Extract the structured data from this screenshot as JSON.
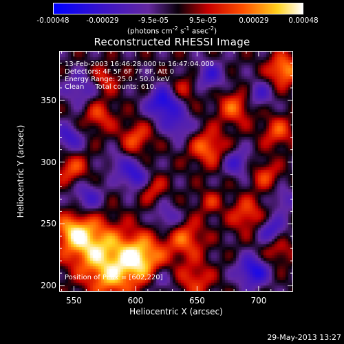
{
  "chart_data": {
    "type": "heatmap",
    "title": "Reconstructed RHESSI Image",
    "xlabel": "Heliocentric X (arcsec)",
    "ylabel": "Heliocentric Y (arcsec)",
    "xlim": [
      538,
      728
    ],
    "ylim": [
      195,
      390
    ],
    "xticks": [
      550,
      600,
      650,
      700
    ],
    "yticks": [
      200,
      250,
      300,
      350
    ],
    "colorbar": {
      "ticks": [
        "-0.00048",
        "-0.00029",
        "-9.5e-05",
        "9.5e-05",
        "0.00029",
        "0.00048"
      ],
      "tick_values": [
        -0.00048,
        -0.00029,
        -9.5e-05,
        9.5e-05,
        0.00029,
        0.00048
      ],
      "range": [
        -0.00048,
        0.00048
      ],
      "unit_prefix": "(photons cm",
      "unit_exp1": "-2",
      "unit_mid": " s",
      "unit_exp2": "-1",
      "unit_mid2": " asec",
      "unit_exp3": "-2",
      "unit_suffix": ")"
    },
    "annotations": [
      "13-Feb-2003 16:46:28.000 to 16:47:04.000",
      "Detectors: 4F 5F 6F 7F 8F, Att 0",
      "Energy Range: 25.0 - 50.0 keV",
      "Clean     Total counts: 610."
    ],
    "peak_label": "Position of Peak = [602,220]",
    "peak": [
      602,
      220
    ],
    "blobs": [
      {
        "x": 602,
        "y": 222,
        "v": 1.0,
        "s": 14
      },
      {
        "x": 565,
        "y": 232,
        "v": 0.85,
        "s": 16
      },
      {
        "x": 548,
        "y": 245,
        "v": 0.6,
        "s": 10
      },
      {
        "x": 640,
        "y": 238,
        "v": 0.55,
        "s": 11
      },
      {
        "x": 578,
        "y": 205,
        "v": 0.55,
        "s": 12
      },
      {
        "x": 720,
        "y": 375,
        "v": 0.75,
        "s": 9
      },
      {
        "x": 680,
        "y": 345,
        "v": 0.55,
        "s": 10
      },
      {
        "x": 658,
        "y": 312,
        "v": 0.6,
        "s": 10
      },
      {
        "x": 600,
        "y": 320,
        "v": 0.5,
        "s": 9
      },
      {
        "x": 570,
        "y": 338,
        "v": 0.45,
        "s": 9
      },
      {
        "x": 715,
        "y": 325,
        "v": 0.5,
        "s": 9
      },
      {
        "x": 705,
        "y": 290,
        "v": 0.45,
        "s": 8
      },
      {
        "x": 612,
        "y": 280,
        "v": 0.45,
        "s": 8
      },
      {
        "x": 548,
        "y": 295,
        "v": 0.5,
        "s": 9
      },
      {
        "x": 690,
        "y": 258,
        "v": 0.5,
        "s": 10
      },
      {
        "x": 648,
        "y": 205,
        "v": 0.45,
        "s": 10
      },
      {
        "x": 715,
        "y": 230,
        "v": 0.4,
        "s": 9
      },
      {
        "x": 575,
        "y": 368,
        "v": 0.4,
        "s": 8
      },
      {
        "x": 640,
        "y": 360,
        "v": 0.35,
        "s": 8
      },
      {
        "x": 660,
        "y": 268,
        "v": 0.35,
        "s": 7
      },
      {
        "x": 622,
        "y": 348,
        "v": -0.8,
        "s": 9
      },
      {
        "x": 600,
        "y": 288,
        "v": -0.7,
        "s": 8
      },
      {
        "x": 635,
        "y": 330,
        "v": -0.5,
        "s": 8
      },
      {
        "x": 695,
        "y": 212,
        "v": -0.75,
        "s": 9
      },
      {
        "x": 710,
        "y": 245,
        "v": -0.6,
        "s": 8
      },
      {
        "x": 660,
        "y": 370,
        "v": -0.5,
        "s": 9
      },
      {
        "x": 555,
        "y": 360,
        "v": -0.45,
        "s": 9
      },
      {
        "x": 560,
        "y": 272,
        "v": -0.5,
        "s": 9
      },
      {
        "x": 545,
        "y": 320,
        "v": -0.55,
        "s": 8
      },
      {
        "x": 682,
        "y": 300,
        "v": -0.5,
        "s": 8
      },
      {
        "x": 625,
        "y": 255,
        "v": -0.45,
        "s": 8
      },
      {
        "x": 700,
        "y": 355,
        "v": -0.45,
        "s": 8
      },
      {
        "x": 620,
        "y": 205,
        "v": -0.4,
        "s": 8
      },
      {
        "x": 585,
        "y": 300,
        "v": -0.35,
        "s": 7
      },
      {
        "x": 720,
        "y": 270,
        "v": -0.4,
        "s": 7
      }
    ]
  },
  "footer": {
    "timestamp": "29-May-2013 13:27"
  }
}
